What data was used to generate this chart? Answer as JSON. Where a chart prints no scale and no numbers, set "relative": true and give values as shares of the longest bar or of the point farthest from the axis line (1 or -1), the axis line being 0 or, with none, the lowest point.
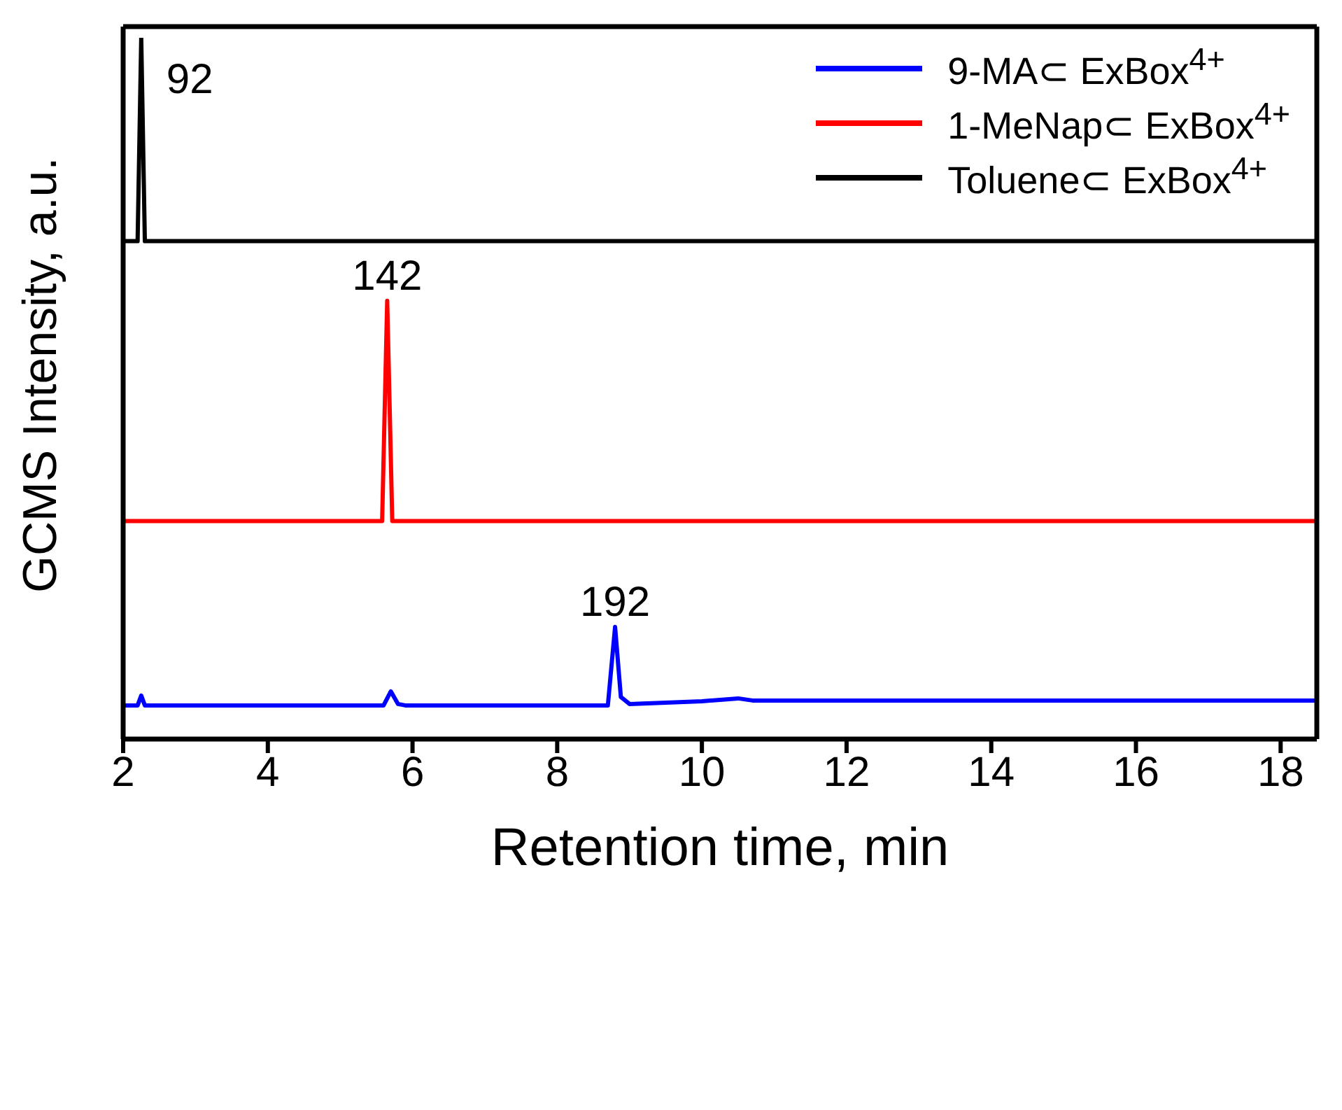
{
  "chart_data": {
    "type": "line",
    "relative": true,
    "xlabel": "Retention time, min",
    "ylabel": "GCMS Intensity, a.u.",
    "xlim": [
      2,
      18.5
    ],
    "xticks": [
      2,
      4,
      6,
      8,
      10,
      12,
      14,
      16,
      18
    ],
    "legend": "top right",
    "marker": "none",
    "line_style": "solid",
    "series": [
      {
        "name": "9-MA⊂ ExBox$^{4+}$",
        "color": "#0000ff",
        "x": [
          2,
          2.2,
          2.25,
          2.3,
          5.6,
          5.7,
          5.8,
          5.9,
          8.7,
          8.8,
          8.88,
          9,
          10,
          10.5,
          10.7,
          18.5
        ],
        "values": [
          0.048,
          0.048,
          0.062,
          0.048,
          0.048,
          0.068,
          0.05,
          0.048,
          0.048,
          0.16,
          0.06,
          0.05,
          0.054,
          0.058,
          0.055,
          0.055
        ]
      },
      {
        "name": "1-MeNap⊂ ExBox$^{4+}$",
        "color": "#ff0000",
        "x": [
          2,
          5.58,
          5.65,
          5.72,
          18.5
        ],
        "values": [
          0.311,
          0.311,
          0.625,
          0.311,
          0.311
        ]
      },
      {
        "name": "Toluene⊂ ExBox$^{4+}$",
        "color": "#000000",
        "x": [
          2,
          2.2,
          2.25,
          2.3,
          18.5
        ],
        "values": [
          0.71,
          0.71,
          1,
          0.71,
          0.71
        ]
      }
    ],
    "annotations": [
      {
        "text": "92",
        "x": 2.25,
        "y": 1
      },
      {
        "text": "142",
        "x": 5.65,
        "y": 0.625
      },
      {
        "text": "192",
        "x": 8.8,
        "y": 0.16
      }
    ]
  }
}
